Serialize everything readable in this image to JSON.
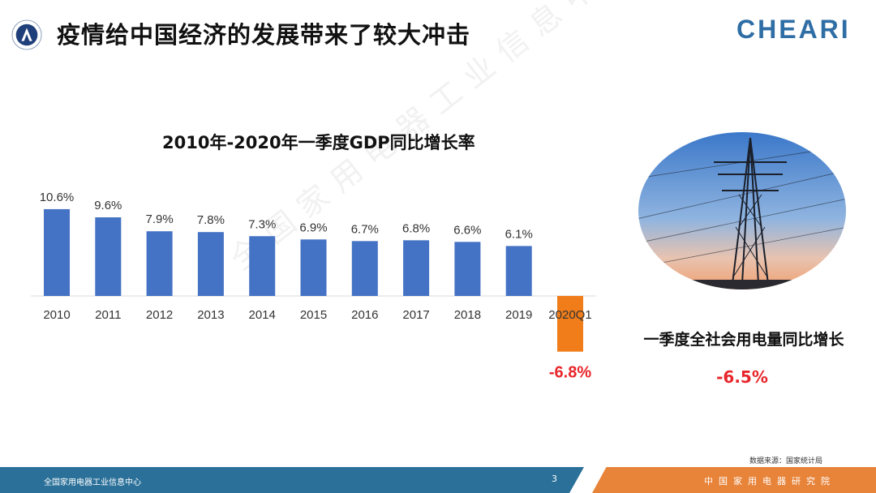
{
  "header": {
    "title": "疫情给中国经济的发展带来了较大冲击",
    "brand": "CHEARI"
  },
  "watermark": "全国家用电器工业信息中心",
  "chart_data": {
    "type": "bar",
    "title": "2010年-2020年一季度GDP同比增长率",
    "categories": [
      "2010",
      "2011",
      "2012",
      "2013",
      "2014",
      "2015",
      "2016",
      "2017",
      "2018",
      "2019",
      "2020Q1"
    ],
    "values": [
      10.6,
      9.6,
      7.9,
      7.8,
      7.3,
      6.9,
      6.7,
      6.8,
      6.6,
      6.1,
      -6.8
    ],
    "labels": [
      "10.6%",
      "9.6%",
      "7.9%",
      "7.8%",
      "7.3%",
      "6.9%",
      "6.7%",
      "6.8%",
      "6.6%",
      "6.1%",
      "-6.8%"
    ],
    "unit": "%",
    "colors": {
      "positive": "#4472c4",
      "negative": "#f07d1a",
      "negative_label": "#e8262b"
    },
    "grid": false
  },
  "side": {
    "caption": "一季度全社会用电量同比增长",
    "value": "-6.5%"
  },
  "source": "数据来源：国家统计局",
  "footer": {
    "left": "全国家用电器工业信息中心",
    "page": "3",
    "right": "中国家用电器研究院"
  }
}
